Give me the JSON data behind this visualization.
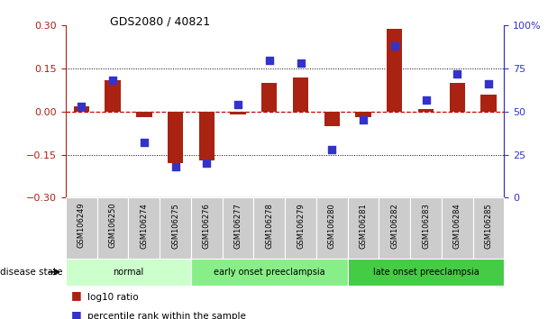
{
  "title": "GDS2080 / 40821",
  "samples": [
    "GSM106249",
    "GSM106250",
    "GSM106274",
    "GSM106275",
    "GSM106276",
    "GSM106277",
    "GSM106278",
    "GSM106279",
    "GSM106280",
    "GSM106281",
    "GSM106282",
    "GSM106283",
    "GSM106284",
    "GSM106285"
  ],
  "log10_ratio": [
    0.02,
    0.11,
    -0.02,
    -0.18,
    -0.17,
    -0.01,
    0.1,
    0.12,
    -0.05,
    -0.02,
    0.29,
    0.01,
    0.1,
    0.06
  ],
  "percentile_rank": [
    53,
    68,
    32,
    18,
    20,
    54,
    80,
    78,
    28,
    45,
    88,
    57,
    72,
    66
  ],
  "bar_color": "#aa2211",
  "dot_color": "#3333cc",
  "zero_line_color": "#cc0000",
  "grid_color": "#333333",
  "bg_color": "#ffffff",
  "ylim_left": [
    -0.3,
    0.3
  ],
  "ylim_right": [
    0,
    100
  ],
  "yticks_left": [
    -0.3,
    -0.15,
    0.0,
    0.15,
    0.3
  ],
  "yticks_right": [
    0,
    25,
    50,
    75,
    100
  ],
  "disease_groups": [
    {
      "label": "normal",
      "start": 0,
      "end": 4,
      "color": "#ccffcc"
    },
    {
      "label": "early onset preeclampsia",
      "start": 4,
      "end": 9,
      "color": "#88ee88"
    },
    {
      "label": "late onset preeclampsia",
      "start": 9,
      "end": 14,
      "color": "#44cc44"
    }
  ],
  "legend_log10": "log10 ratio",
  "legend_pct": "percentile rank within the sample",
  "disease_state_label": "disease state"
}
